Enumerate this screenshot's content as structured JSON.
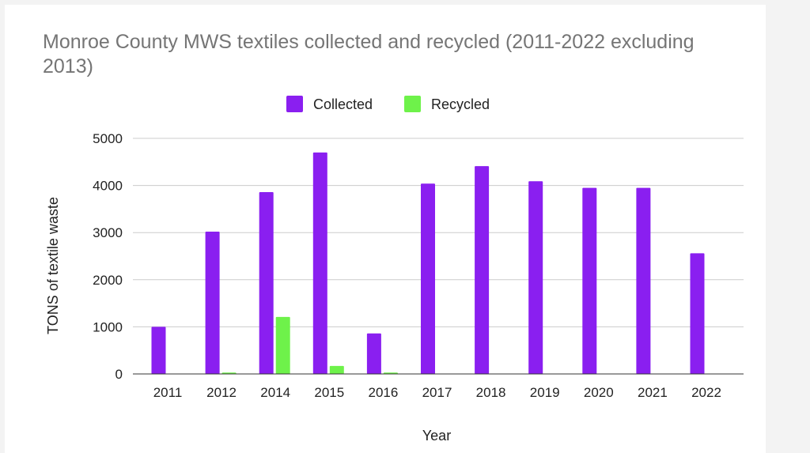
{
  "chart_data": {
    "type": "bar",
    "title": "Monroe County MWS textiles collected and recycled (2011-2022 excluding 2013)",
    "xlabel": "Year",
    "ylabel": "TONS of textile waste",
    "ylim": [
      0,
      5000
    ],
    "yticks": [
      "0",
      "1000",
      "2000",
      "3000",
      "4000",
      "5000"
    ],
    "grid": true,
    "legend_position": "top-center",
    "categories": [
      "2011",
      "2012",
      "2014",
      "2015",
      "2016",
      "2017",
      "2018",
      "2019",
      "2020",
      "2021",
      "2022"
    ],
    "series": [
      {
        "name": "Collected",
        "color": "#8a1ff0",
        "values": [
          1000,
          3020,
          3860,
          4700,
          860,
          4040,
          4410,
          4090,
          3950,
          3950,
          2560
        ]
      },
      {
        "name": "Recycled",
        "color": "#6ef24a",
        "values": [
          0,
          30,
          1210,
          170,
          30,
          0,
          0,
          0,
          0,
          0,
          0
        ]
      }
    ]
  }
}
